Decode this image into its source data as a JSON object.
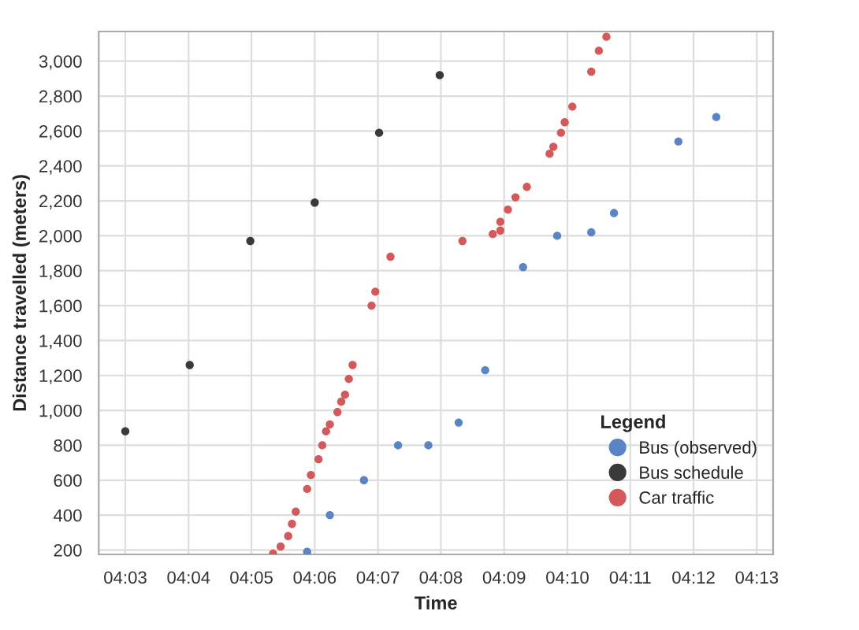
{
  "chart_data": {
    "type": "scatter",
    "xlabel": "Time",
    "ylabel": "Distance travelled (meters)",
    "legend_title": "Legend",
    "legend": "bottom right",
    "grid": true,
    "marker": "circle",
    "xlim": [
      4.043,
      4.221
    ],
    "ylim": [
      175,
      3170
    ],
    "xticks": [
      {
        "value": 4.05,
        "label": "04:03"
      },
      {
        "value": 4.0667,
        "label": "04:04"
      },
      {
        "value": 4.0833,
        "label": "04:05"
      },
      {
        "value": 4.1,
        "label": "04:06"
      },
      {
        "value": 4.1167,
        "label": "04:07"
      },
      {
        "value": 4.1333,
        "label": "04:08"
      },
      {
        "value": 4.15,
        "label": "04:09"
      },
      {
        "value": 4.1667,
        "label": "04:10"
      },
      {
        "value": 4.1833,
        "label": "04:11"
      },
      {
        "value": 4.2,
        "label": "04:12"
      },
      {
        "value": 4.2167,
        "label": "04:13"
      }
    ],
    "yticks": [
      {
        "value": 200,
        "label": "200"
      },
      {
        "value": 400,
        "label": "400"
      },
      {
        "value": 600,
        "label": "600"
      },
      {
        "value": 800,
        "label": "800"
      },
      {
        "value": 1000,
        "label": "1,000"
      },
      {
        "value": 1200,
        "label": "1,200"
      },
      {
        "value": 1400,
        "label": "1,400"
      },
      {
        "value": 1600,
        "label": "1,600"
      },
      {
        "value": 1800,
        "label": "1,800"
      },
      {
        "value": 2000,
        "label": "2,000"
      },
      {
        "value": 2200,
        "label": "2,200"
      },
      {
        "value": 2400,
        "label": "2,400"
      },
      {
        "value": 2600,
        "label": "2,600"
      },
      {
        "value": 2800,
        "label": "2,800"
      },
      {
        "value": 3000,
        "label": "3,000"
      }
    ],
    "series": [
      {
        "name": "Bus (observed)",
        "color": "#5b84c4",
        "x": [
          4.098,
          4.104,
          4.113,
          4.122,
          4.13,
          4.138,
          4.145,
          4.155,
          4.164,
          4.173,
          4.179,
          4.196,
          4.206
        ],
        "values": [
          190,
          400,
          600,
          800,
          800,
          930,
          1230,
          1820,
          2000,
          2020,
          2130,
          2540,
          2680
        ]
      },
      {
        "name": "Bus schedule",
        "color": "#3a3a3a",
        "x": [
          4.05,
          4.067,
          4.083,
          4.1,
          4.117,
          4.133
        ],
        "values": [
          880,
          1260,
          1970,
          2190,
          2590,
          2920
        ]
      },
      {
        "name": "Car traffic",
        "color": "#d4595b",
        "x": [
          4.089,
          4.091,
          4.093,
          4.094,
          4.095,
          4.098,
          4.099,
          4.101,
          4.102,
          4.103,
          4.104,
          4.106,
          4.107,
          4.108,
          4.109,
          4.11,
          4.115,
          4.116,
          4.12,
          4.139,
          4.147,
          4.149,
          4.149,
          4.151,
          4.153,
          4.156,
          4.162,
          4.163,
          4.165,
          4.166,
          4.168,
          4.173,
          4.175,
          4.177
        ],
        "values": [
          180,
          220,
          280,
          350,
          420,
          550,
          630,
          720,
          800,
          880,
          920,
          990,
          1050,
          1090,
          1180,
          1260,
          1600,
          1680,
          1880,
          1970,
          2010,
          2030,
          2080,
          2150,
          2220,
          2280,
          2470,
          2510,
          2590,
          2650,
          2740,
          2940,
          3060,
          3140
        ]
      }
    ]
  }
}
